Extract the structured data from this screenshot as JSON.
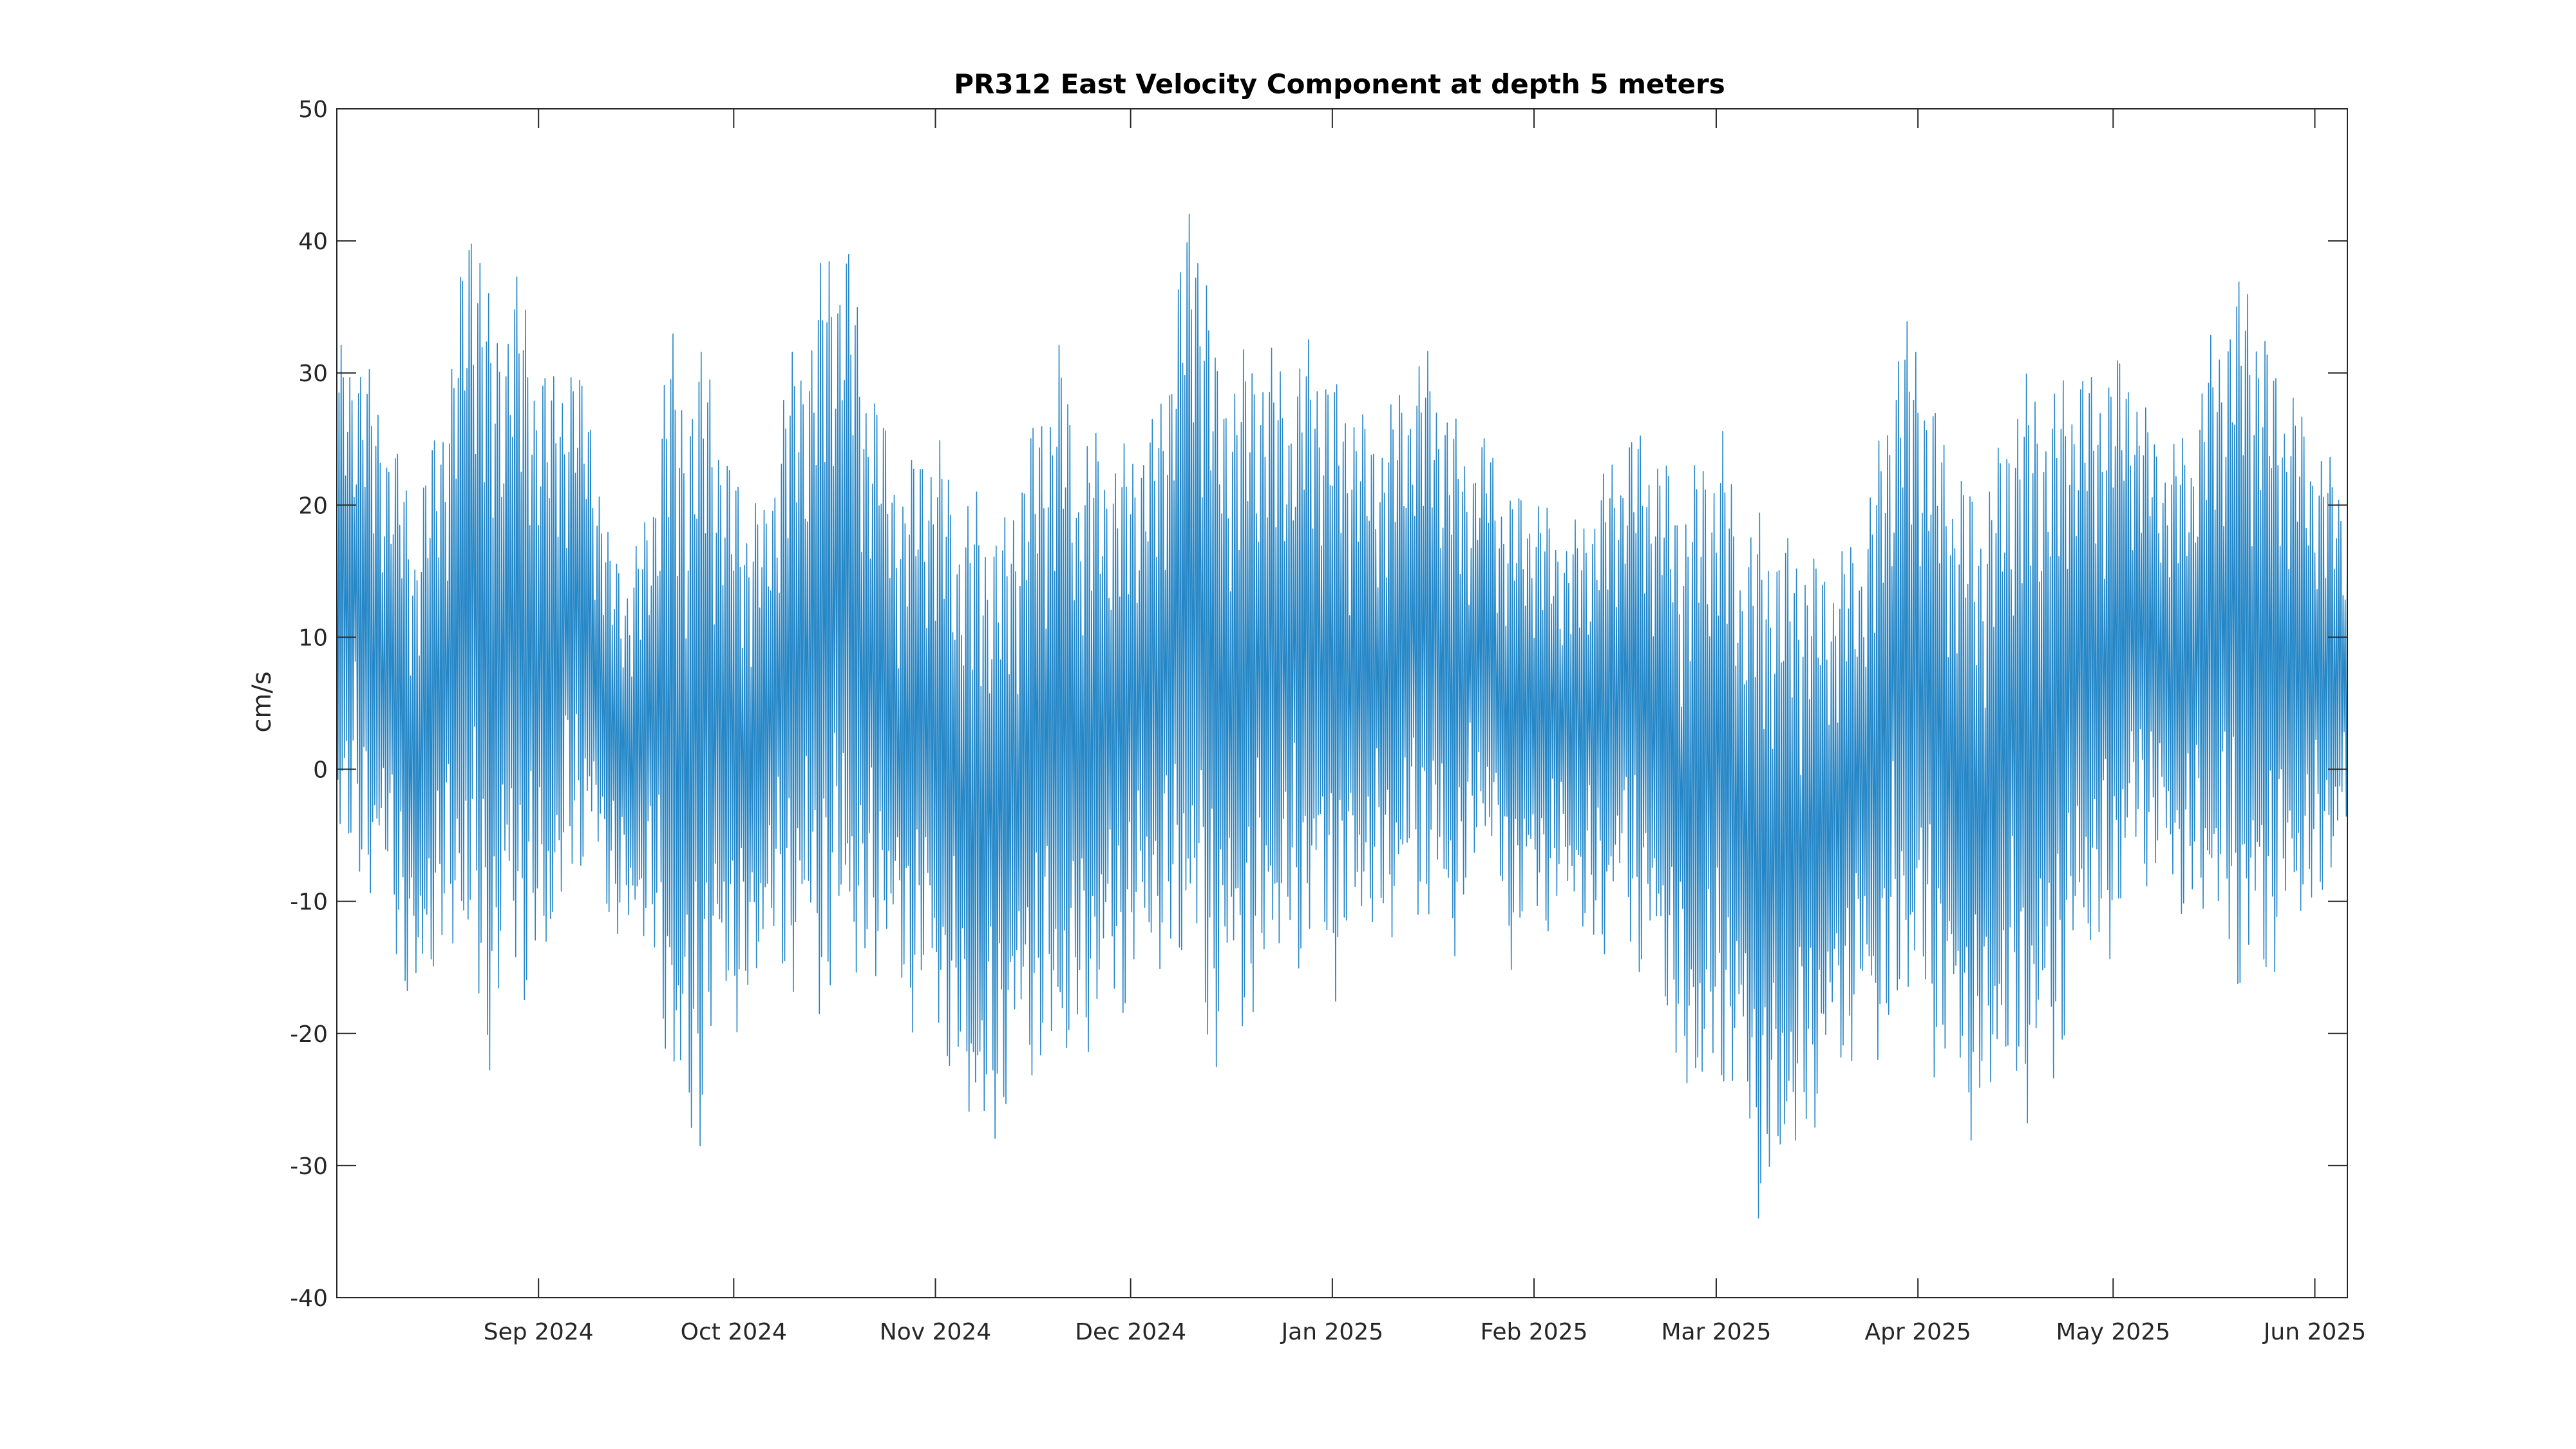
{
  "chart_data": {
    "type": "line",
    "title": "PR312 East Velocity Component at depth 5 meters",
    "xlabel": "",
    "ylabel": "cm/s",
    "x_axis": "date",
    "xlim": [
      "2024-08-01",
      "2025-06-06"
    ],
    "ylim": [
      -40,
      50
    ],
    "y_ticks": [
      -40,
      -30,
      -20,
      -10,
      0,
      10,
      20,
      30,
      40,
      50
    ],
    "x_ticks": [
      {
        "date": "2024-09-01",
        "label": "Sep 2024"
      },
      {
        "date": "2024-10-01",
        "label": "Oct 2024"
      },
      {
        "date": "2024-11-01",
        "label": "Nov 2024"
      },
      {
        "date": "2024-12-01",
        "label": "Dec 2024"
      },
      {
        "date": "2025-01-01",
        "label": "Jan 2025"
      },
      {
        "date": "2025-02-01",
        "label": "Feb 2025"
      },
      {
        "date": "2025-03-01",
        "label": "Mar 2025"
      },
      {
        "date": "2025-04-01",
        "label": "Apr 2025"
      },
      {
        "date": "2025-05-01",
        "label": "May 2025"
      },
      {
        "date": "2025-06-01",
        "label": "Jun 2025"
      }
    ],
    "grid": false,
    "legend": "none",
    "series": [
      {
        "color": "#0072BD",
        "x": [
          "2024-08-01",
          "2024-08-04",
          "2024-08-07",
          "2024-08-10",
          "2024-08-13",
          "2024-08-16",
          "2024-08-19",
          "2024-08-22",
          "2024-08-25",
          "2024-08-28",
          "2024-08-31",
          "2024-09-03",
          "2024-09-06",
          "2024-09-09",
          "2024-09-12",
          "2024-09-15",
          "2024-09-18",
          "2024-09-21",
          "2024-09-24",
          "2024-09-27",
          "2024-09-30",
          "2024-10-03",
          "2024-10-06",
          "2024-10-09",
          "2024-10-12",
          "2024-10-15",
          "2024-10-18",
          "2024-10-21",
          "2024-10-24",
          "2024-10-27",
          "2024-10-30",
          "2024-11-02",
          "2024-11-05",
          "2024-11-08",
          "2024-11-11",
          "2024-11-14",
          "2024-11-17",
          "2024-11-20",
          "2024-11-23",
          "2024-11-26",
          "2024-11-29",
          "2024-12-02",
          "2024-12-05",
          "2024-12-08",
          "2024-12-11",
          "2024-12-14",
          "2024-12-17",
          "2024-12-20",
          "2024-12-23",
          "2024-12-26",
          "2024-12-29",
          "2025-01-01",
          "2025-01-04",
          "2025-01-07",
          "2025-01-10",
          "2025-01-13",
          "2025-01-16",
          "2025-01-19",
          "2025-01-22",
          "2025-01-25",
          "2025-01-28",
          "2025-01-31",
          "2025-02-03",
          "2025-02-06",
          "2025-02-09",
          "2025-02-12",
          "2025-02-15",
          "2025-02-18",
          "2025-02-21",
          "2025-02-24",
          "2025-02-27",
          "2025-03-02",
          "2025-03-05",
          "2025-03-08",
          "2025-03-11",
          "2025-03-14",
          "2025-03-17",
          "2025-03-20",
          "2025-03-23",
          "2025-03-26",
          "2025-03-29",
          "2025-04-01",
          "2025-04-04",
          "2025-04-07",
          "2025-04-10",
          "2025-04-13",
          "2025-04-16",
          "2025-04-19",
          "2025-04-22",
          "2025-04-25",
          "2025-04-28",
          "2025-05-01",
          "2025-05-04",
          "2025-05-07",
          "2025-05-10",
          "2025-05-13",
          "2025-05-16",
          "2025-05-19",
          "2025-05-22",
          "2025-05-25",
          "2025-05-28",
          "2025-05-31",
          "2025-06-03",
          "2025-06-06"
        ],
        "hi": [
          32,
          33,
          29,
          25,
          20,
          26,
          33,
          47,
          33,
          39,
          34,
          30,
          32,
          28,
          17,
          16,
          20,
          34,
          30,
          33,
          24,
          22,
          20,
          31,
          33,
          40,
          42,
          33,
          27,
          22,
          26,
          25,
          20,
          22,
          18,
          24,
          28,
          33,
          25,
          26,
          24,
          26,
          27,
          37,
          47,
          32,
          31,
          33,
          32,
          30,
          34,
          30,
          29,
          26,
          28,
          31,
          32,
          28,
          24,
          26,
          21,
          22,
          20,
          18,
          20,
          23,
          26,
          26,
          24,
          21,
          25,
          26,
          18,
          20,
          18,
          18,
          16,
          17,
          18,
          25,
          34,
          34,
          27,
          24,
          21,
          24,
          30,
          30,
          29,
          32,
          30,
          32,
          31,
          26,
          25,
          26,
          33,
          36,
          39,
          32,
          30,
          26,
          24,
          21
        ],
        "lo": [
          -8,
          -10,
          -12,
          -14,
          -23,
          -17,
          -16,
          -22,
          -24,
          -18,
          -20,
          -18,
          -9,
          -10,
          -12,
          -16,
          -14,
          -27,
          -34,
          -26,
          -20,
          -22,
          -16,
          -18,
          -19,
          -20,
          -18,
          -20,
          -16,
          -20,
          -20,
          -24,
          -27,
          -34,
          -28,
          -26,
          -24,
          -28,
          -24,
          -22,
          -20,
          -18,
          -17,
          -18,
          -21,
          -24,
          -22,
          -21,
          -18,
          -17,
          -16,
          -18,
          -16,
          -14,
          -15,
          -13,
          -12,
          -18,
          -10,
          -8,
          -16,
          -14,
          -13,
          -12,
          -15,
          -16,
          -13,
          -18,
          -20,
          -27,
          -30,
          -25,
          -29,
          -36,
          -35,
          -31,
          -28,
          -24,
          -22,
          -25,
          -21,
          -22,
          -24,
          -27,
          -30,
          -28,
          -27,
          -29,
          -25,
          -20,
          -16,
          -17,
          -10,
          -9,
          -12,
          -13,
          -15,
          -16,
          -22,
          -17,
          -15,
          -14,
          -10,
          -9
        ]
      }
    ]
  }
}
